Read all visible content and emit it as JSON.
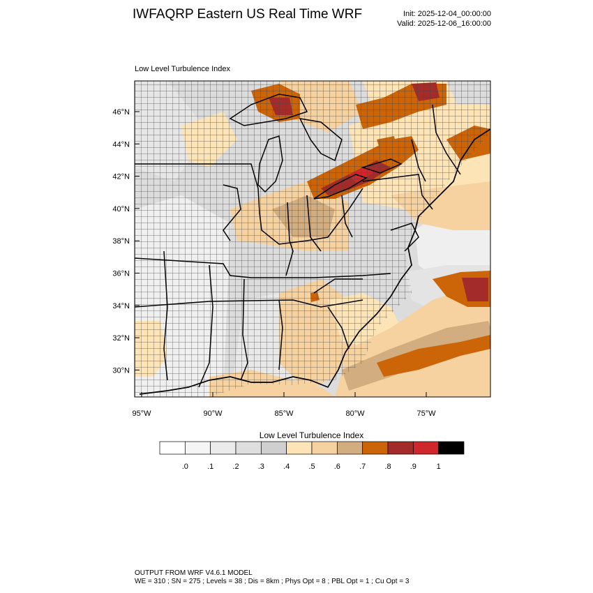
{
  "header": {
    "title": "IWFAQRP Eastern US Real Time WRF",
    "init": "Init: 2025-12-04_00:00:00",
    "valid": "Valid: 2025-12-06_16:00:00"
  },
  "panel": {
    "field_title": "Low Level Turbulence Index",
    "lat_labels": [
      "46°N",
      "44°N",
      "42°N",
      "40°N",
      "38°N",
      "36°N",
      "34°N",
      "32°N",
      "30°N"
    ],
    "lon_labels": [
      "95°W",
      "90°W",
      "85°W",
      "80°W",
      "75°W"
    ]
  },
  "colorbar": {
    "title": "Low Level Turbulence Index",
    "labels": [
      ".0",
      ".1",
      ".2",
      ".3",
      ".4",
      ".5",
      ".6",
      ".7",
      ".8",
      ".9",
      "1"
    ],
    "colors": [
      "#ffffff",
      "#f5f5f5",
      "#ebebeb",
      "#dedede",
      "#cfcfcf",
      "#fde4b6",
      "#f6d2a0",
      "#d1ad80",
      "#cc6408",
      "#a32c2a",
      "#d0262d",
      "#000000"
    ]
  },
  "footer": {
    "line1": "OUTPUT FROM WRF V4.6.1 MODEL",
    "line2": "WE = 310 ; SN = 275 ; Levels = 38 ; Dis = 8km ; Phys Opt = 8 ; PBL Opt = 1 ; Cu Opt = 3"
  }
}
